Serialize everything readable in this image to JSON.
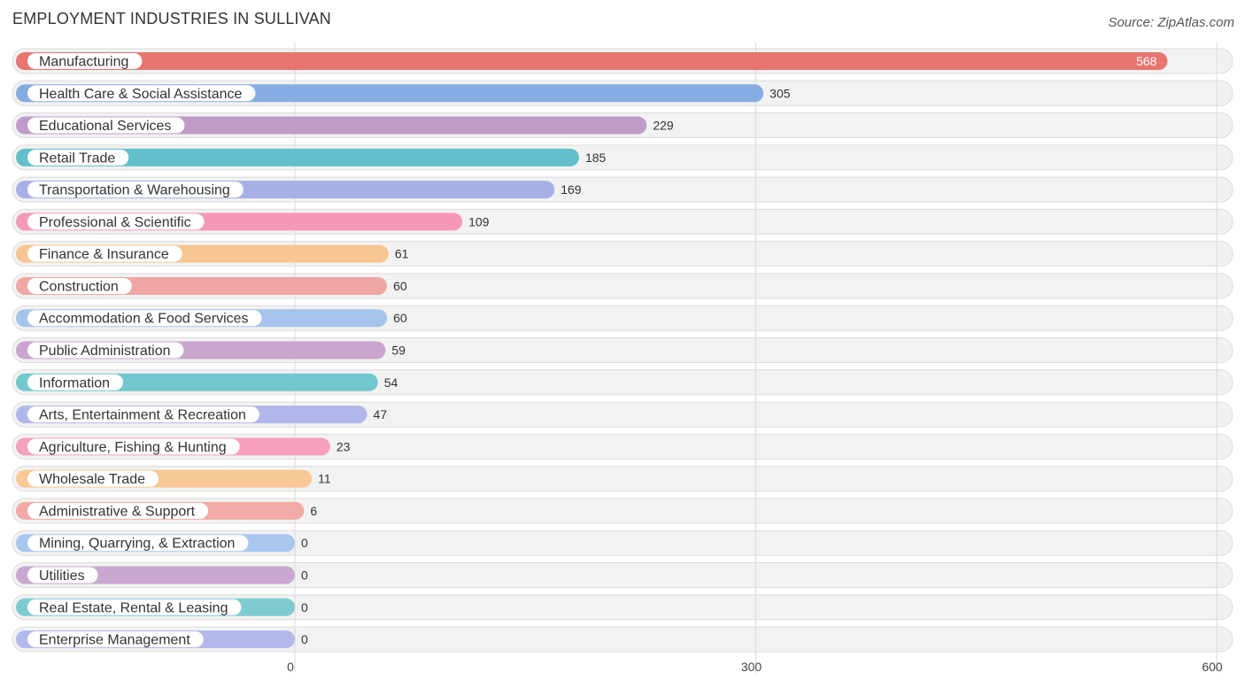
{
  "title": "EMPLOYMENT INDUSTRIES IN SULLIVAN",
  "source": "Source: ZipAtlas.com",
  "chart_data": {
    "type": "bar",
    "orientation": "horizontal",
    "title": "EMPLOYMENT INDUSTRIES IN SULLIVAN",
    "xlabel": "",
    "ylabel": "",
    "xlim": [
      0,
      600
    ],
    "ticks": [
      0,
      300,
      600
    ],
    "grid": true,
    "categories": [
      "Manufacturing",
      "Health Care & Social Assistance",
      "Educational Services",
      "Retail Trade",
      "Transportation & Warehousing",
      "Professional & Scientific",
      "Finance & Insurance",
      "Construction",
      "Accommodation & Food Services",
      "Public Administration",
      "Information",
      "Arts, Entertainment & Recreation",
      "Agriculture, Fishing & Hunting",
      "Wholesale Trade",
      "Administrative & Support",
      "Mining, Quarrying, & Extraction",
      "Utilities",
      "Real Estate, Rental & Leasing",
      "Enterprise Management"
    ],
    "values": [
      568,
      305,
      229,
      185,
      169,
      109,
      61,
      60,
      60,
      59,
      54,
      47,
      23,
      11,
      6,
      0,
      0,
      0,
      0
    ],
    "colors": [
      "#e8756f",
      "#85ade2",
      "#bf9cc8",
      "#62bfcb",
      "#a7b0e6",
      "#f699b6",
      "#f9c693",
      "#efa7a3",
      "#a5c4ec",
      "#c9a6cd",
      "#73c7cf",
      "#b2b7ea",
      "#f6a1bd",
      "#f9c897",
      "#f0aba6",
      "#a8c6ee",
      "#c8a8cf",
      "#7fcbd2",
      "#b4b9eb"
    ]
  }
}
